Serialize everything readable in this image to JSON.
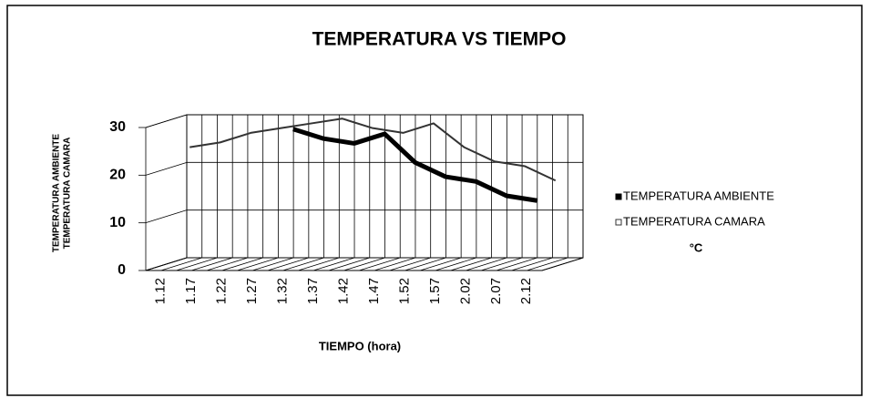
{
  "chart_data": {
    "type": "line",
    "title": "TEMPERATURA VS TIEMPO",
    "y_label": [
      "TEMPERATURA AMBIENTE",
      "TEMPERATURA CAMARA"
    ],
    "x_label": "TIEMPO (hora)",
    "unit_note": "°C",
    "categories": [
      "1.12",
      "1.17",
      "1.22",
      "1.27",
      "1.32",
      "1.37",
      "1.42",
      "1.47",
      "1.52",
      "1.57",
      "2.02",
      "2.07",
      "2.12"
    ],
    "series": [
      {
        "name": "TEMPERATURA AMBIENTE",
        "color": "#000000",
        "values": [
          null,
          null,
          null,
          null,
          29,
          27,
          26,
          28,
          22,
          19,
          18,
          15,
          14
        ]
      },
      {
        "name": "TEMPERATURA CAMARA",
        "color": "#333333",
        "values": [
          24,
          25,
          27,
          28,
          29,
          30,
          28,
          27,
          29,
          24,
          21,
          20,
          17
        ]
      }
    ],
    "ylim": [
      0,
      30
    ],
    "yticks": [
      0,
      10,
      20,
      30
    ],
    "grid": true
  }
}
